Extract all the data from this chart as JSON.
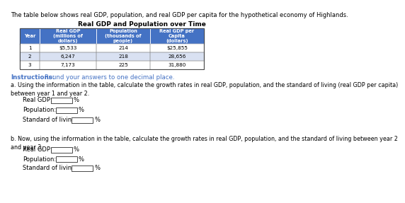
{
  "title_text": "The table below shows real GDP, population, and real GDP per capita for the hypothetical economy of Highlands.",
  "table_title": "Real GDP and Population over Time",
  "header_bg": "#4472C4",
  "header_text_color": "#FFFFFF",
  "col1": "Year",
  "col2": "Real GDP\n(millions of\ndollars)",
  "col3": "Population\n(thousands of\npeople)",
  "col4": "Real GDP per\nCapita\n(dollars)",
  "rows": [
    [
      "1",
      "$5,533",
      "214",
      "$25,855"
    ],
    [
      "2",
      "6,247",
      "218",
      "28,656"
    ],
    [
      "3",
      "7,173",
      "225",
      "31,880"
    ]
  ],
  "instructions_label": "Instructions:",
  "instructions_text": "Round your answers to one decimal place.",
  "instructions_color": "#4472C4",
  "part_a_text": "a. Using the information in the table, calculate the growth rates in real GDP, population, and the standard of living (real GDP per capita)\nbetween year 1 and year 2.",
  "part_b_text": "b. Now, using the information in the table, calculate the growth rates in real GDP, population, and the standard of living between year 2\nand year 3.",
  "label_real_gdp": "Real GDP:",
  "label_population": "Population:",
  "label_standard": "Standard of living:",
  "pct_symbol": "%"
}
